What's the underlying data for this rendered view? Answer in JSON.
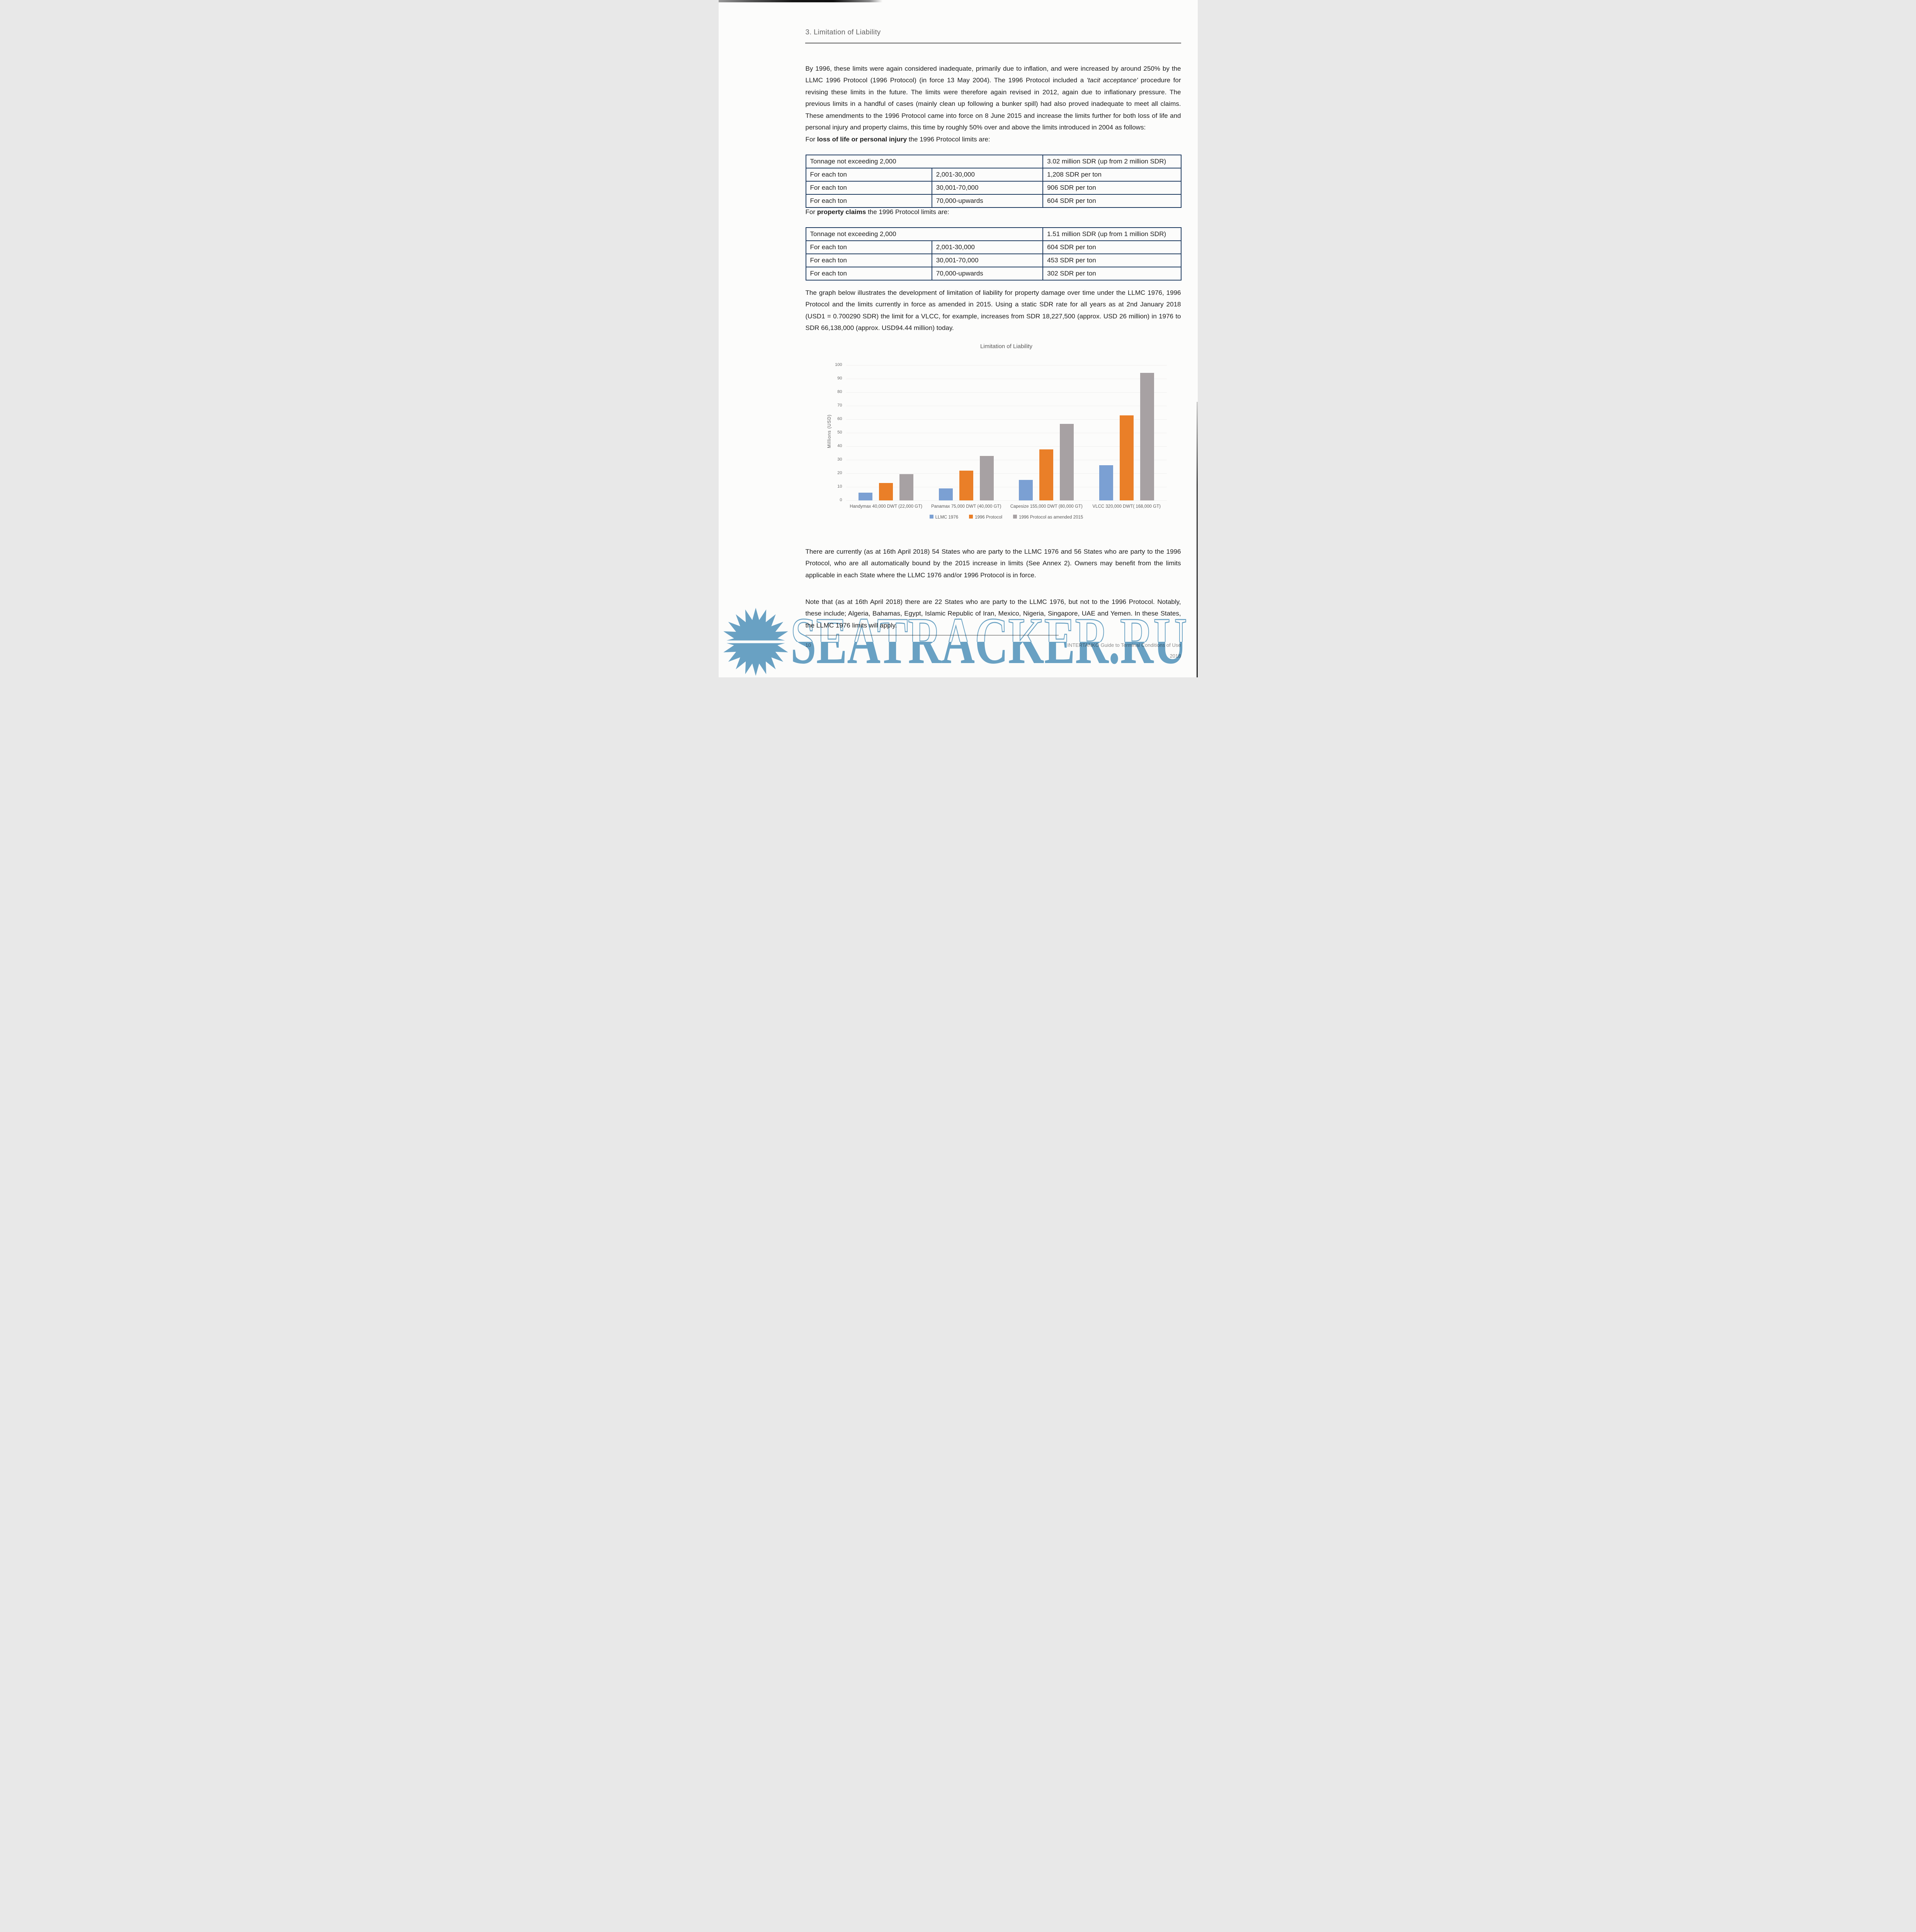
{
  "header": {
    "title": "3. Limitation of Liability"
  },
  "paragraphs": {
    "intro_a": "By 1996, these limits were again considered inadequate, primarily due to inflation, and were increased by around 250% by the LLMC 1996 Protocol (1996 Protocol) (in force 13 May 2004). The 1996 Protocol included a ",
    "intro_italic": "'tacit acceptance'",
    "intro_b": " procedure for revising these limits in the future. The limits were therefore again revised in 2012, again due to inflationary pressure. The previous limits in a handful of cases (mainly clean up following a bunker spill) had also proved inadequate to meet all claims. These amendments to the 1996 Protocol came into force on 8 June 2015 and increase the limits further for both loss of life and personal injury and property claims, this time by roughly 50% over and above the limits introduced in 2004 as follows:",
    "graph": "The graph below illustrates the development of limitation of liability for property damage over time under the LLMC 1976, 1996 Protocol and the limits currently in force as amended in 2015. Using a static SDR rate for all years as at 2nd January 2018 (USD1 = 0.700290 SDR) the limit for a VLCC, for example, increases from SDR 18,227,500 (approx. USD 26 million) in 1976 to SDR 66,138,000 (approx. USD94.44 million) today.",
    "states": "There are currently (as at 16th April 2018) 54 States who are party to the LLMC 1976 and 56 States who are party to the 1996 Protocol, who are all automatically bound by the 2015 increase in limits (See Annex 2). Owners may benefit from the limits applicable in each State where the LLMC 1976 and/or 1996 Protocol is in force.",
    "note": "Note that (as at 16th April 2018) there are 22 States who are party to the LLMC 1976, but not to the 1996 Protocol. Notably, these include; Algeria, Bahamas, Egypt, Islamic Republic of Iran, Mexico, Nigeria, Singapore, UAE and Yemen. In these States, the LLMC 1976 limits will apply."
  },
  "lead_ins": {
    "injury": {
      "prefix": "For ",
      "bold": "loss of life or personal injury",
      "suffix": " the 1996 Protocol limits are:"
    },
    "property": {
      "prefix": "For ",
      "bold": "property claims",
      "suffix": " the 1996 Protocol limits are:"
    }
  },
  "tables": {
    "injury": {
      "merged_first_row": true,
      "rows": [
        [
          "Tonnage not exceeding 2,000",
          "",
          "3.02 million SDR (up from 2 million SDR)"
        ],
        [
          "For each ton",
          "2,001-30,000",
          "1,208 SDR per ton"
        ],
        [
          "For each ton",
          "30,001-70,000",
          "906 SDR per ton"
        ],
        [
          "For each ton",
          "70,000-upwards",
          "604 SDR per ton"
        ]
      ]
    },
    "property": {
      "merged_first_row": true,
      "rows": [
        [
          "Tonnage not exceeding 2,000",
          "",
          "1.51 million SDR (up from 1 million SDR)"
        ],
        [
          "For each ton",
          "2,001-30,000",
          "604 SDR per ton"
        ],
        [
          "For each ton",
          "30,001-70,000",
          "453 SDR per ton"
        ],
        [
          "For each ton",
          "70,000-upwards",
          "302 SDR per ton"
        ]
      ]
    }
  },
  "chart_data": {
    "type": "bar",
    "title": "Limitation of Liability",
    "ylabel": "Millions (USD)",
    "ylim": [
      0,
      100
    ],
    "ytick_step": 10,
    "grid": "faint-horizontal",
    "legend_position": "bottom",
    "categories": [
      "Handymax 40,000 DWT (22,000 GT)",
      "Panamax 75,000 DWT (40,000 GT)",
      "Capesize 155,000 DWT (80,000 GT)",
      "VLCC 320,000 DWT( 168,000 GT)"
    ],
    "series": [
      {
        "name": "LLMC 1976",
        "color": "#7ba0d3",
        "values": [
          5.6,
          9.0,
          15.2,
          26.0
        ]
      },
      {
        "name": "1996 Protocol",
        "color": "#ea7f28",
        "values": [
          12.9,
          21.9,
          37.7,
          63.0
        ]
      },
      {
        "name": "1996 Protocol as amended 2015",
        "color": "#a7a1a3",
        "values": [
          19.4,
          32.8,
          56.5,
          94.4
        ]
      }
    ]
  },
  "footer": {
    "page_number": "10",
    "title": "INTERTANKO Guide to Terminal Conditions of Use",
    "year": "2018"
  },
  "watermark": {
    "text": "SEATRACKER.RU",
    "color": "#5e9cc2",
    "icon": "sun-icon"
  }
}
